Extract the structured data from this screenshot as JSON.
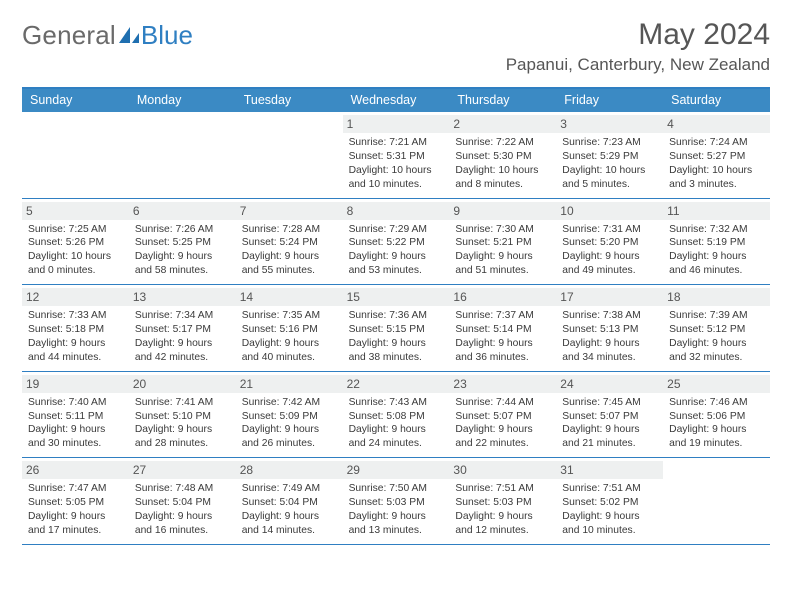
{
  "brand": {
    "part1": "General",
    "part2": "Blue"
  },
  "title": "May 2024",
  "location": "Papanui, Canterbury, New Zealand",
  "colors": {
    "accent": "#3b8ac4",
    "rule": "#2f7fc2",
    "dayNumBg": "#eef0f0",
    "text": "#333333",
    "titleText": "#565656"
  },
  "daysOfWeek": [
    "Sunday",
    "Monday",
    "Tuesday",
    "Wednesday",
    "Thursday",
    "Friday",
    "Saturday"
  ],
  "weeks": [
    [
      {
        "n": "",
        "sunrise": "",
        "sunset": "",
        "daylight": ""
      },
      {
        "n": "",
        "sunrise": "",
        "sunset": "",
        "daylight": ""
      },
      {
        "n": "",
        "sunrise": "",
        "sunset": "",
        "daylight": ""
      },
      {
        "n": "1",
        "sunrise": "Sunrise: 7:21 AM",
        "sunset": "Sunset: 5:31 PM",
        "daylight": "Daylight: 10 hours and 10 minutes."
      },
      {
        "n": "2",
        "sunrise": "Sunrise: 7:22 AM",
        "sunset": "Sunset: 5:30 PM",
        "daylight": "Daylight: 10 hours and 8 minutes."
      },
      {
        "n": "3",
        "sunrise": "Sunrise: 7:23 AM",
        "sunset": "Sunset: 5:29 PM",
        "daylight": "Daylight: 10 hours and 5 minutes."
      },
      {
        "n": "4",
        "sunrise": "Sunrise: 7:24 AM",
        "sunset": "Sunset: 5:27 PM",
        "daylight": "Daylight: 10 hours and 3 minutes."
      }
    ],
    [
      {
        "n": "5",
        "sunrise": "Sunrise: 7:25 AM",
        "sunset": "Sunset: 5:26 PM",
        "daylight": "Daylight: 10 hours and 0 minutes."
      },
      {
        "n": "6",
        "sunrise": "Sunrise: 7:26 AM",
        "sunset": "Sunset: 5:25 PM",
        "daylight": "Daylight: 9 hours and 58 minutes."
      },
      {
        "n": "7",
        "sunrise": "Sunrise: 7:28 AM",
        "sunset": "Sunset: 5:24 PM",
        "daylight": "Daylight: 9 hours and 55 minutes."
      },
      {
        "n": "8",
        "sunrise": "Sunrise: 7:29 AM",
        "sunset": "Sunset: 5:22 PM",
        "daylight": "Daylight: 9 hours and 53 minutes."
      },
      {
        "n": "9",
        "sunrise": "Sunrise: 7:30 AM",
        "sunset": "Sunset: 5:21 PM",
        "daylight": "Daylight: 9 hours and 51 minutes."
      },
      {
        "n": "10",
        "sunrise": "Sunrise: 7:31 AM",
        "sunset": "Sunset: 5:20 PM",
        "daylight": "Daylight: 9 hours and 49 minutes."
      },
      {
        "n": "11",
        "sunrise": "Sunrise: 7:32 AM",
        "sunset": "Sunset: 5:19 PM",
        "daylight": "Daylight: 9 hours and 46 minutes."
      }
    ],
    [
      {
        "n": "12",
        "sunrise": "Sunrise: 7:33 AM",
        "sunset": "Sunset: 5:18 PM",
        "daylight": "Daylight: 9 hours and 44 minutes."
      },
      {
        "n": "13",
        "sunrise": "Sunrise: 7:34 AM",
        "sunset": "Sunset: 5:17 PM",
        "daylight": "Daylight: 9 hours and 42 minutes."
      },
      {
        "n": "14",
        "sunrise": "Sunrise: 7:35 AM",
        "sunset": "Sunset: 5:16 PM",
        "daylight": "Daylight: 9 hours and 40 minutes."
      },
      {
        "n": "15",
        "sunrise": "Sunrise: 7:36 AM",
        "sunset": "Sunset: 5:15 PM",
        "daylight": "Daylight: 9 hours and 38 minutes."
      },
      {
        "n": "16",
        "sunrise": "Sunrise: 7:37 AM",
        "sunset": "Sunset: 5:14 PM",
        "daylight": "Daylight: 9 hours and 36 minutes."
      },
      {
        "n": "17",
        "sunrise": "Sunrise: 7:38 AM",
        "sunset": "Sunset: 5:13 PM",
        "daylight": "Daylight: 9 hours and 34 minutes."
      },
      {
        "n": "18",
        "sunrise": "Sunrise: 7:39 AM",
        "sunset": "Sunset: 5:12 PM",
        "daylight": "Daylight: 9 hours and 32 minutes."
      }
    ],
    [
      {
        "n": "19",
        "sunrise": "Sunrise: 7:40 AM",
        "sunset": "Sunset: 5:11 PM",
        "daylight": "Daylight: 9 hours and 30 minutes."
      },
      {
        "n": "20",
        "sunrise": "Sunrise: 7:41 AM",
        "sunset": "Sunset: 5:10 PM",
        "daylight": "Daylight: 9 hours and 28 minutes."
      },
      {
        "n": "21",
        "sunrise": "Sunrise: 7:42 AM",
        "sunset": "Sunset: 5:09 PM",
        "daylight": "Daylight: 9 hours and 26 minutes."
      },
      {
        "n": "22",
        "sunrise": "Sunrise: 7:43 AM",
        "sunset": "Sunset: 5:08 PM",
        "daylight": "Daylight: 9 hours and 24 minutes."
      },
      {
        "n": "23",
        "sunrise": "Sunrise: 7:44 AM",
        "sunset": "Sunset: 5:07 PM",
        "daylight": "Daylight: 9 hours and 22 minutes."
      },
      {
        "n": "24",
        "sunrise": "Sunrise: 7:45 AM",
        "sunset": "Sunset: 5:07 PM",
        "daylight": "Daylight: 9 hours and 21 minutes."
      },
      {
        "n": "25",
        "sunrise": "Sunrise: 7:46 AM",
        "sunset": "Sunset: 5:06 PM",
        "daylight": "Daylight: 9 hours and 19 minutes."
      }
    ],
    [
      {
        "n": "26",
        "sunrise": "Sunrise: 7:47 AM",
        "sunset": "Sunset: 5:05 PM",
        "daylight": "Daylight: 9 hours and 17 minutes."
      },
      {
        "n": "27",
        "sunrise": "Sunrise: 7:48 AM",
        "sunset": "Sunset: 5:04 PM",
        "daylight": "Daylight: 9 hours and 16 minutes."
      },
      {
        "n": "28",
        "sunrise": "Sunrise: 7:49 AM",
        "sunset": "Sunset: 5:04 PM",
        "daylight": "Daylight: 9 hours and 14 minutes."
      },
      {
        "n": "29",
        "sunrise": "Sunrise: 7:50 AM",
        "sunset": "Sunset: 5:03 PM",
        "daylight": "Daylight: 9 hours and 13 minutes."
      },
      {
        "n": "30",
        "sunrise": "Sunrise: 7:51 AM",
        "sunset": "Sunset: 5:03 PM",
        "daylight": "Daylight: 9 hours and 12 minutes."
      },
      {
        "n": "31",
        "sunrise": "Sunrise: 7:51 AM",
        "sunset": "Sunset: 5:02 PM",
        "daylight": "Daylight: 9 hours and 10 minutes."
      },
      {
        "n": "",
        "sunrise": "",
        "sunset": "",
        "daylight": ""
      }
    ]
  ]
}
